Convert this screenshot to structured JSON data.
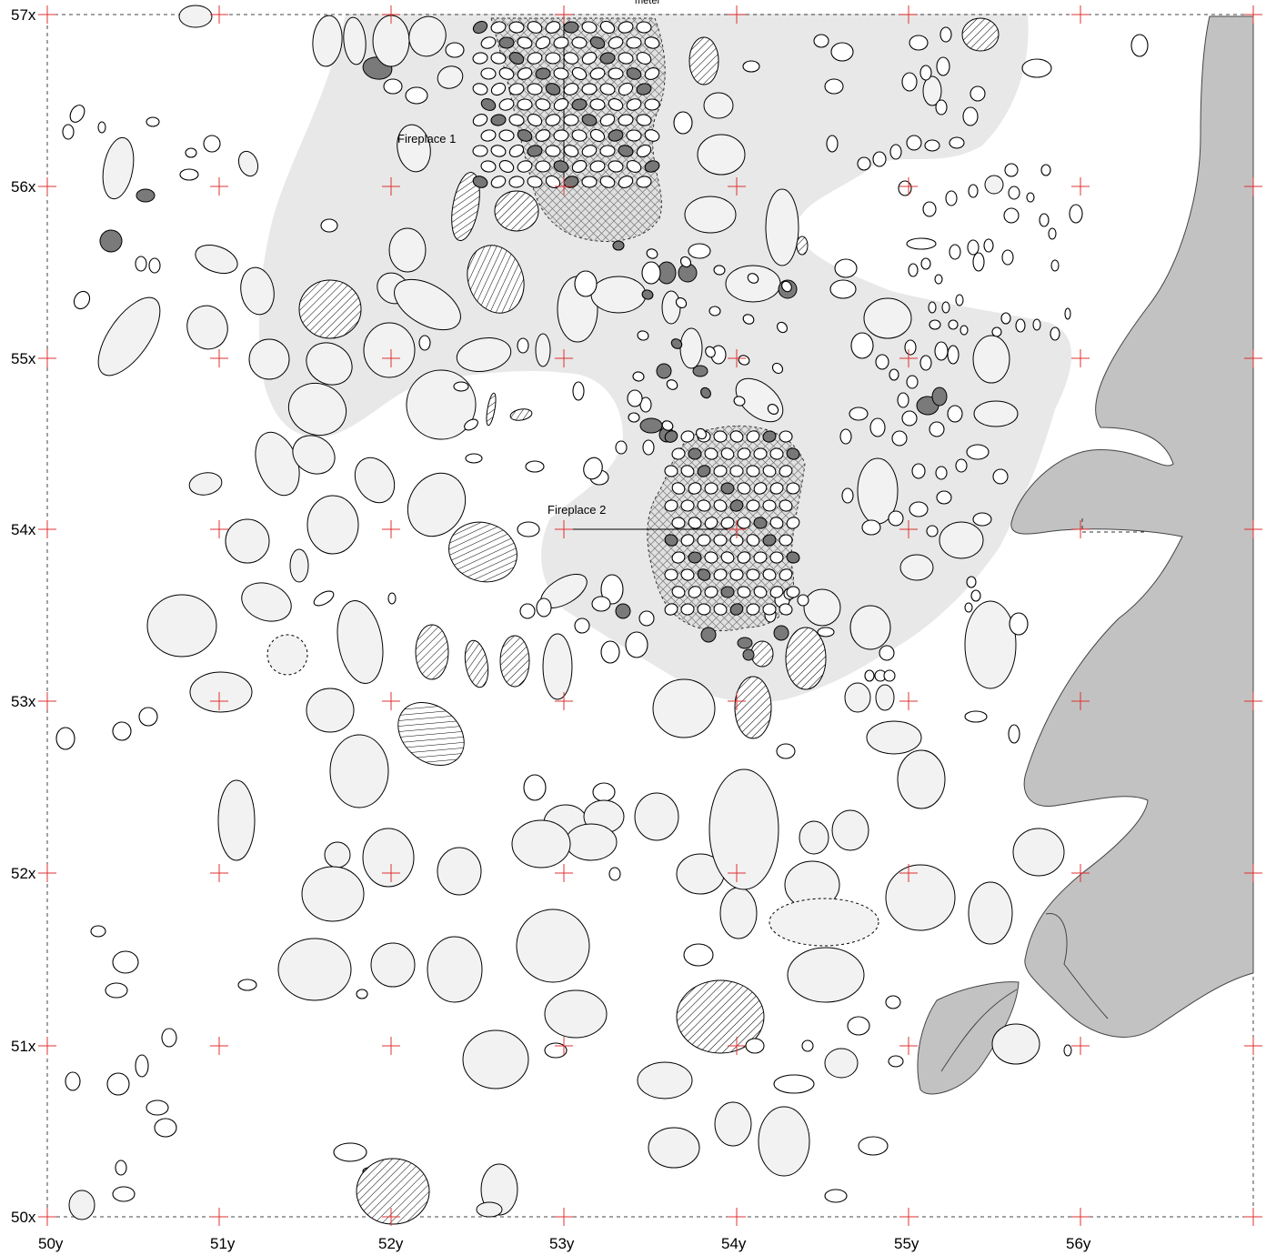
{
  "map": {
    "x_labels": [
      "57x",
      "56x",
      "55x",
      "54x",
      "53x",
      "52x",
      "51x",
      "50x"
    ],
    "y_labels": [
      "50y",
      "51y",
      "52y",
      "53y",
      "54y",
      "55y",
      "56y"
    ],
    "fireplaces": [
      {
        "label": "Fireplace 1"
      },
      {
        "label": "Fireplace 2"
      }
    ],
    "scale_label": "meter",
    "colors": {
      "activity_area": "#e8e8e8",
      "rock_outcrop": "#c2c2c2",
      "grid_cross": "#e03030",
      "stone_fill": "#f2f2f2",
      "burnt_stone": "#777777"
    }
  }
}
